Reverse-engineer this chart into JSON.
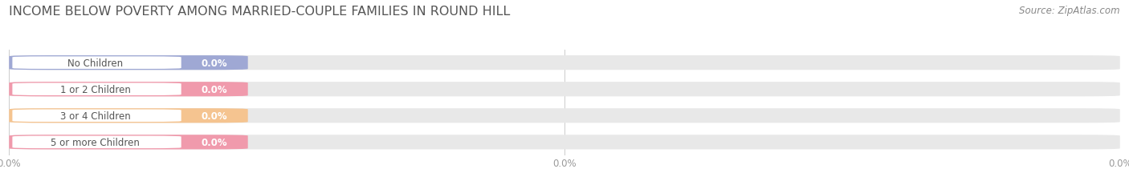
{
  "title": "INCOME BELOW POVERTY AMONG MARRIED-COUPLE FAMILIES IN ROUND HILL",
  "source": "Source: ZipAtlas.com",
  "categories": [
    "No Children",
    "1 or 2 Children",
    "3 or 4 Children",
    "5 or more Children"
  ],
  "values": [
    0.0,
    0.0,
    0.0,
    0.0
  ],
  "bar_colors": [
    "#9fa8d4",
    "#f09aac",
    "#f5c490",
    "#f09aac"
  ],
  "bar_bg_color": "#e8e8e8",
  "label_bg_color": "#ffffff",
  "background_color": "#ffffff",
  "title_fontsize": 11.5,
  "source_fontsize": 8.5,
  "label_fontsize": 8.5,
  "value_fontsize": 8.5,
  "xtick_labels": [
    "0.0%",
    "0.0%",
    "0.0%"
  ],
  "xtick_positions": [
    0.0,
    0.5,
    1.0
  ],
  "grid_color": "#cccccc",
  "label_text_color": "#555555",
  "value_text_color": "#ffffff",
  "tick_text_color": "#999999"
}
